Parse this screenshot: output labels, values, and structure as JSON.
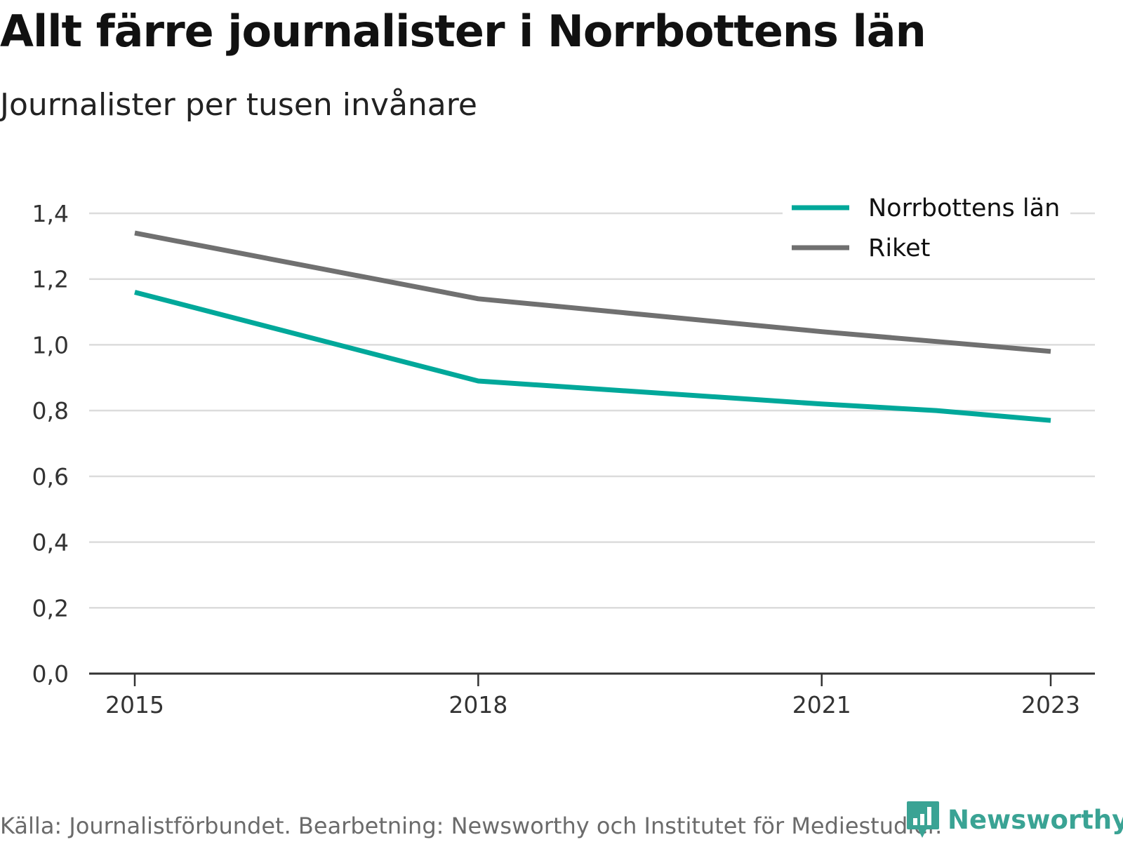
{
  "header": {
    "title": "Allt färre journalister i Norrbottens län",
    "subtitle": "Journalister per tusen invånare"
  },
  "footer": {
    "source": "Källa: Journalistförbundet. Bearbetning: Newsworthy och Institutet för Mediestudier.",
    "brand": "Newsworthy",
    "brand_icon": "chart-speech-bubble-icon",
    "brand_color": "#3aa394"
  },
  "chart_data": {
    "type": "line",
    "title": "Allt färre journalister i Norrbottens län",
    "subtitle": "Journalister per tusen invånare",
    "x": [
      2015,
      2018,
      2021,
      2023
    ],
    "x_tick_labels": [
      "2015",
      "2018",
      "2021",
      "2023"
    ],
    "y_ticks": [
      0,
      0.2,
      0.4,
      0.6,
      0.8,
      1.0,
      1.2,
      1.4
    ],
    "y_tick_labels": [
      "0,0",
      "0,2",
      "0,4",
      "0,6",
      "0,8",
      "1,0",
      "1,2",
      "1,4"
    ],
    "ylim": [
      0,
      1.4
    ],
    "grid": true,
    "legend_position": "top-right",
    "series": [
      {
        "name": "Norrbottens län",
        "color": "#00a89a",
        "points": [
          [
            2015,
            1.16
          ],
          [
            2018,
            0.89
          ],
          [
            2021,
            0.82
          ],
          [
            2022,
            0.8
          ],
          [
            2023,
            0.77
          ]
        ]
      },
      {
        "name": "Riket",
        "color": "#707070",
        "points": [
          [
            2015,
            1.34
          ],
          [
            2018,
            1.14
          ],
          [
            2021,
            1.04
          ],
          [
            2022,
            1.01
          ],
          [
            2023,
            0.98
          ]
        ]
      }
    ]
  }
}
